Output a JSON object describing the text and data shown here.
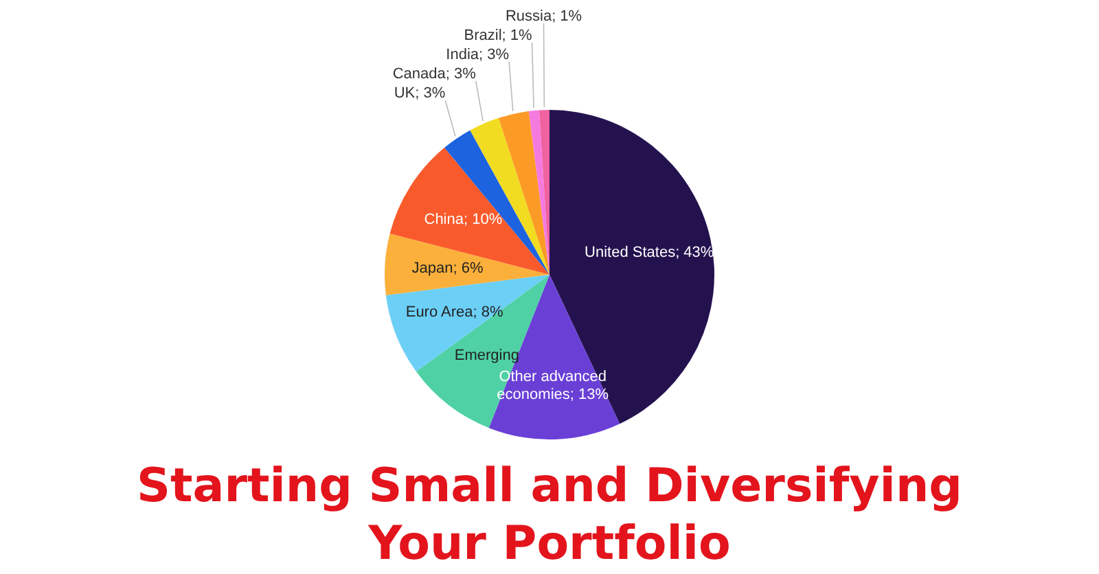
{
  "chart_data": {
    "type": "pie",
    "title": "Starting Small and Diversifying Your Portfolio",
    "categories": [
      "United States",
      "Other advanced economies",
      "Emerging",
      "Euro Area",
      "Japan",
      "China",
      "UK",
      "Canada",
      "India",
      "Brazil",
      "Russia"
    ],
    "values": [
      43,
      13,
      9,
      8,
      6,
      10,
      3,
      3,
      3,
      1,
      1
    ],
    "value_labels": [
      "43%",
      "13%",
      null,
      "8%",
      "6%",
      "10%",
      "3%",
      "3%",
      "3%",
      "1%",
      "1%"
    ],
    "colors": [
      "#24124f",
      "#6a3fd6",
      "#4fd1a5",
      "#6ccff6",
      "#fbb03b",
      "#f95a2c",
      "#1d63e0",
      "#f2dc22",
      "#fb9b25",
      "#f57ae0",
      "#f062a0"
    ]
  }
}
